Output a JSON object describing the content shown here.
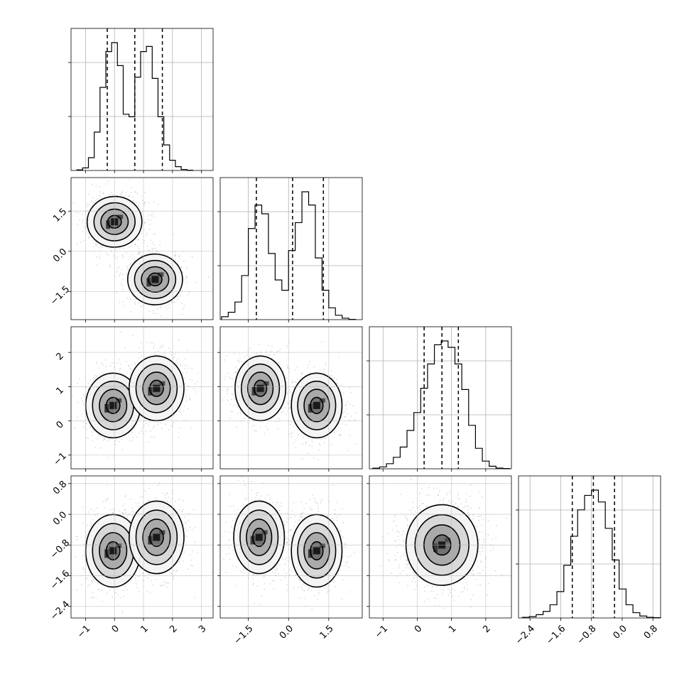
{
  "chart_data": {
    "type": "corner",
    "n_params": 4,
    "params": [
      {
        "range": [
          -1.5,
          3.4
        ],
        "ticks": [
          -1,
          0,
          1,
          2,
          3
        ],
        "tick_labels": [
          "−1",
          "0",
          "1",
          "2",
          "3"
        ],
        "quantiles": [
          -0.25,
          0.7,
          1.65
        ],
        "hist": {
          "x0": -1.3,
          "dx": 0.2,
          "counts": [
            0.005,
            0.02,
            0.1,
            0.3,
            0.65,
            0.93,
            1.0,
            0.82,
            0.44,
            0.42,
            0.73,
            0.93,
            0.97,
            0.72,
            0.42,
            0.2,
            0.08,
            0.03,
            0.008,
            0.002
          ]
        }
      },
      {
        "range": [
          -2.55,
          2.75
        ],
        "ticks": [
          -1.5,
          0.0,
          1.5
        ],
        "tick_labels": [
          "−1.5",
          "0.0",
          "1.5"
        ],
        "quantiles": [
          -1.2,
          0.15,
          1.3
        ],
        "hist": {
          "x0": -2.5,
          "dx": 0.25,
          "counts": [
            0.02,
            0.05,
            0.12,
            0.3,
            0.62,
            0.78,
            0.72,
            0.45,
            0.27,
            0.2,
            0.47,
            0.66,
            0.87,
            0.78,
            0.42,
            0.2,
            0.08,
            0.03,
            0.01,
            0.002
          ]
        }
      },
      {
        "range": [
          -1.4,
          2.75
        ],
        "ticks": [
          -1,
          0,
          1,
          2
        ],
        "tick_labels": [
          "−1",
          "0",
          "1",
          "2"
        ],
        "quantiles": [
          0.2,
          0.72,
          1.2
        ],
        "hist": {
          "x0": -1.3,
          "dx": 0.2,
          "counts": [
            0.005,
            0.015,
            0.04,
            0.09,
            0.17,
            0.3,
            0.44,
            0.63,
            0.82,
            0.97,
            1.0,
            0.95,
            0.82,
            0.62,
            0.34,
            0.16,
            0.06,
            0.02,
            0.006,
            0.002
          ]
        }
      },
      {
        "range": [
          -2.7,
          1.0
        ],
        "ticks": [
          -2.4,
          -1.6,
          -0.8,
          0.0,
          0.8
        ],
        "tick_labels": [
          "−2.4",
          "−1.6",
          "−0.8",
          "0.0",
          "0.8"
        ],
        "quantiles": [
          -1.3,
          -0.75,
          -0.2
        ],
        "hist": {
          "x0": -2.6,
          "dx": 0.18,
          "counts": [
            0.005,
            0.01,
            0.025,
            0.05,
            0.1,
            0.2,
            0.4,
            0.62,
            0.82,
            0.93,
            0.97,
            0.88,
            0.68,
            0.44,
            0.22,
            0.1,
            0.04,
            0.015,
            0.005,
            0.002
          ]
        }
      }
    ],
    "pairs": [
      {
        "row": 1,
        "col": 0,
        "components": [
          {
            "mu": [
              0.0,
              1.1
            ],
            "sigma": [
              0.45,
              0.45
            ],
            "rho": 0.1
          },
          {
            "mu": [
              1.4,
              -1.05
            ],
            "sigma": [
              0.45,
              0.45
            ],
            "rho": -0.05
          }
        ]
      },
      {
        "row": 2,
        "col": 0,
        "components": [
          {
            "mu": [
              -0.05,
              0.45
            ],
            "sigma": [
              0.45,
              0.45
            ],
            "rho": 0.0
          },
          {
            "mu": [
              1.45,
              0.95
            ],
            "sigma": [
              0.45,
              0.45
            ],
            "rho": 0.0
          }
        ]
      },
      {
        "row": 2,
        "col": 1,
        "components": [
          {
            "mu": [
              -1.05,
              0.95
            ],
            "sigma": [
              0.45,
              0.45
            ],
            "rho": 0.0
          },
          {
            "mu": [
              1.05,
              0.45
            ],
            "sigma": [
              0.45,
              0.45
            ],
            "rho": 0.0
          }
        ]
      },
      {
        "row": 3,
        "col": 0,
        "components": [
          {
            "mu": [
              -0.05,
              -0.95
            ],
            "sigma": [
              0.45,
              0.45
            ],
            "rho": 0.0
          },
          {
            "mu": [
              1.45,
              -0.6
            ],
            "sigma": [
              0.45,
              0.45
            ],
            "rho": 0.0
          }
        ]
      },
      {
        "row": 3,
        "col": 1,
        "components": [
          {
            "mu": [
              -1.1,
              -0.6
            ],
            "sigma": [
              0.45,
              0.45
            ],
            "rho": 0.0
          },
          {
            "mu": [
              1.05,
              -0.95
            ],
            "sigma": [
              0.45,
              0.45
            ],
            "rho": 0.0
          }
        ]
      },
      {
        "row": 3,
        "col": 2,
        "components": [
          {
            "mu": [
              0.72,
              -0.8
            ],
            "sigma": [
              0.5,
              0.5
            ],
            "rho": 0.0
          }
        ]
      }
    ],
    "contour_levels_sigma": [
      0.5,
      1.0,
      1.5,
      2.0
    ],
    "grid": true,
    "colors": {
      "line": "#000000",
      "grid": "#b0b0b0",
      "points": "#9a9a9a"
    }
  }
}
